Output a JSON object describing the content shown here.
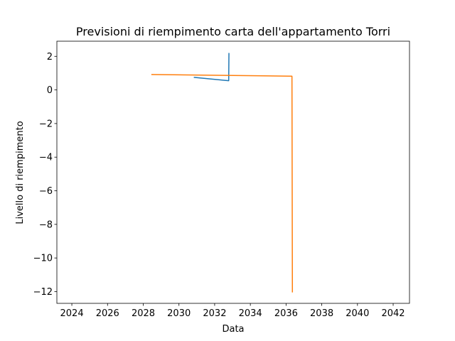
{
  "chart_data": {
    "type": "line",
    "title": "Previsioni di riempimento carta dell'appartamento Torri",
    "xlabel": "Data",
    "ylabel": "Livello di riempimento",
    "x_ticks": [
      "2024",
      "2026",
      "2028",
      "2030",
      "2032",
      "2034",
      "2036",
      "2038",
      "2040",
      "2042"
    ],
    "y_ticks": [
      "2",
      "0",
      "−2",
      "−4",
      "−6",
      "−8",
      "−10",
      "−12"
    ],
    "xlim": [
      "2023-03-01",
      "2042-12-01"
    ],
    "ylim": [
      -12.7,
      2.9
    ],
    "grid": false,
    "series": [
      {
        "color": "#1f77b4",
        "points": [
          {
            "x": "2030-11-01",
            "y": 0.75
          },
          {
            "x": "2032-10-15",
            "y": 0.55
          },
          {
            "x": "2032-10-20",
            "y": 2.2
          }
        ]
      },
      {
        "color": "#ff7f0e",
        "points": [
          {
            "x": "2028-06-15",
            "y": 0.92
          },
          {
            "x": "2036-05-01",
            "y": 0.82
          },
          {
            "x": "2036-05-10",
            "y": -12.05
          }
        ]
      }
    ]
  }
}
